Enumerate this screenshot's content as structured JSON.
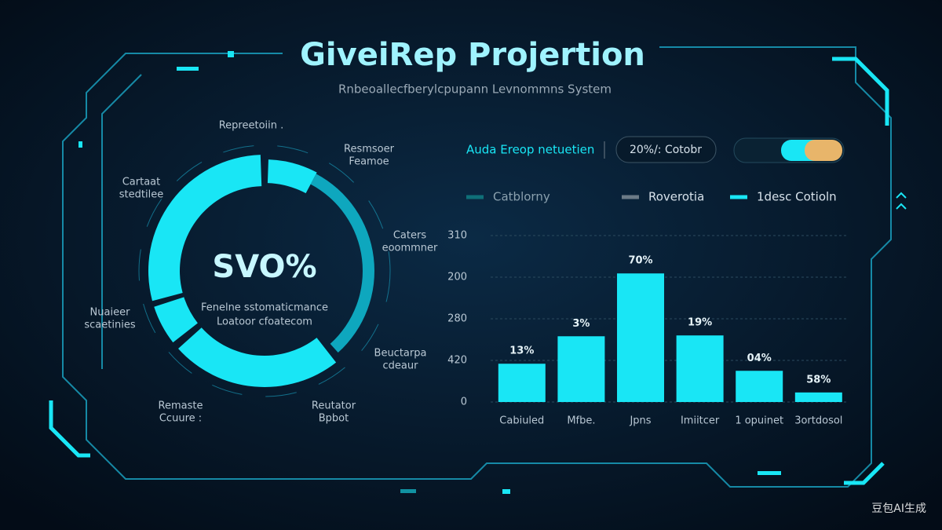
{
  "header": {
    "title": "GiveiRep Projertion",
    "subtitle": "Rnbeoallecfberylcpupann Levnommns System"
  },
  "donut": {
    "center_value": "SVO%",
    "center_lines": [
      "Fenelne sstomaticmance",
      "Loatoor cfoatecom"
    ],
    "labels": [
      [
        "Repreetoiin ."
      ],
      [
        "Resmsoer",
        "Feamoe"
      ],
      [
        "Cartaat",
        "stedtilee"
      ],
      [
        "Caters",
        "eoommner"
      ],
      [
        "Nuaieer",
        "scaetinies"
      ],
      [
        "Beuctarpa",
        "cdeaur"
      ],
      [
        "Remaste",
        "Ccuure :"
      ],
      [
        "Reutator",
        "Bpbot"
      ]
    ]
  },
  "panel": {
    "heading": "Auda Ereop netuetien",
    "pill": "20%/: Cotobr"
  },
  "chart_data": {
    "type": "bar",
    "legend": [
      {
        "name": "Catblorny",
        "color": "#0f6f78"
      },
      {
        "name": "Roverotia",
        "color": "#6b7a86"
      },
      {
        "name": "1desc Cotioln",
        "color": "#19e6f5"
      }
    ],
    "categories": [
      "Cabiuled",
      "Mfbe.",
      "Jpns",
      "Imiitcer",
      "1 opuinet",
      "3ortdosol"
    ],
    "values": [
      0.92,
      1.58,
      3.09,
      1.6,
      0.75,
      0.23
    ],
    "bar_labels": [
      "13%",
      "3%",
      "70%",
      "19%",
      "04%",
      "58%"
    ],
    "color": "#19e6f5",
    "ylim": [
      0,
      4
    ],
    "yticks": [
      0,
      {
        "value": 1,
        "label": "420"
      },
      {
        "value": 2,
        "label": "280"
      },
      {
        "value": 3,
        "label": "200"
      },
      {
        "value": 4,
        "label": "310"
      }
    ],
    "grid": true
  },
  "watermark": "豆包AI生成"
}
